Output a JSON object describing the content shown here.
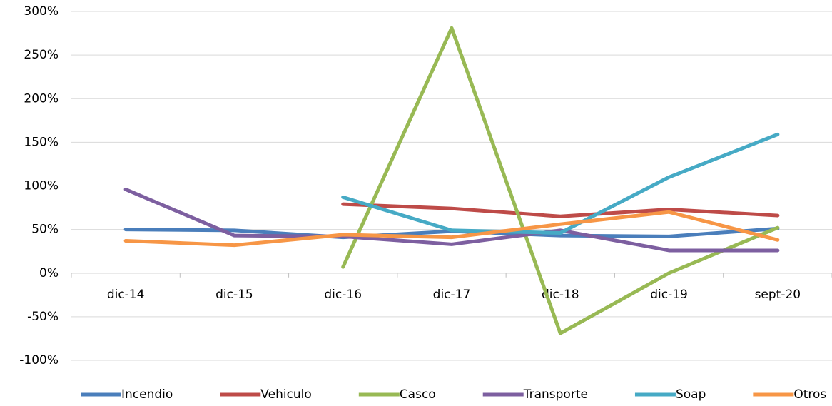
{
  "chart_data": {
    "type": "line",
    "categories": [
      "dic-14",
      "dic-15",
      "dic-16",
      "dic-17",
      "dic-18",
      "dic-19",
      "sept-20"
    ],
    "series": [
      {
        "name": "Incendio",
        "color": "#4a7ebb",
        "values": [
          50,
          49,
          41,
          48,
          43,
          42,
          51
        ]
      },
      {
        "name": "Vehiculo",
        "color": "#be4b48",
        "values": [
          null,
          null,
          79,
          74,
          65,
          73,
          66
        ]
      },
      {
        "name": "Casco",
        "color": "#98b954",
        "values": [
          null,
          null,
          7,
          281,
          -69,
          0,
          52
        ]
      },
      {
        "name": "Transporte",
        "color": "#7d5fa0",
        "values": [
          96,
          43,
          42,
          33,
          49,
          26,
          26
        ]
      },
      {
        "name": "Soap",
        "color": "#46aac5",
        "values": [
          null,
          null,
          87,
          49,
          46,
          110,
          159
        ]
      },
      {
        "name": "Otros",
        "color": "#f79646",
        "values": [
          37,
          32,
          44,
          41,
          56,
          70,
          38
        ]
      }
    ],
    "ylim": [
      -100,
      300
    ],
    "yticks": [
      {
        "value": -100,
        "label": "-100%"
      },
      {
        "value": -50,
        "label": "-50%"
      },
      {
        "value": 0,
        "label": "0%"
      },
      {
        "value": 50,
        "label": "50%"
      },
      {
        "value": 100,
        "label": "100%"
      },
      {
        "value": 150,
        "label": "150%"
      },
      {
        "value": 200,
        "label": "200%"
      },
      {
        "value": 250,
        "label": "250%"
      },
      {
        "value": 300,
        "label": "300%"
      }
    ],
    "grid": true,
    "legend": "bottom"
  }
}
